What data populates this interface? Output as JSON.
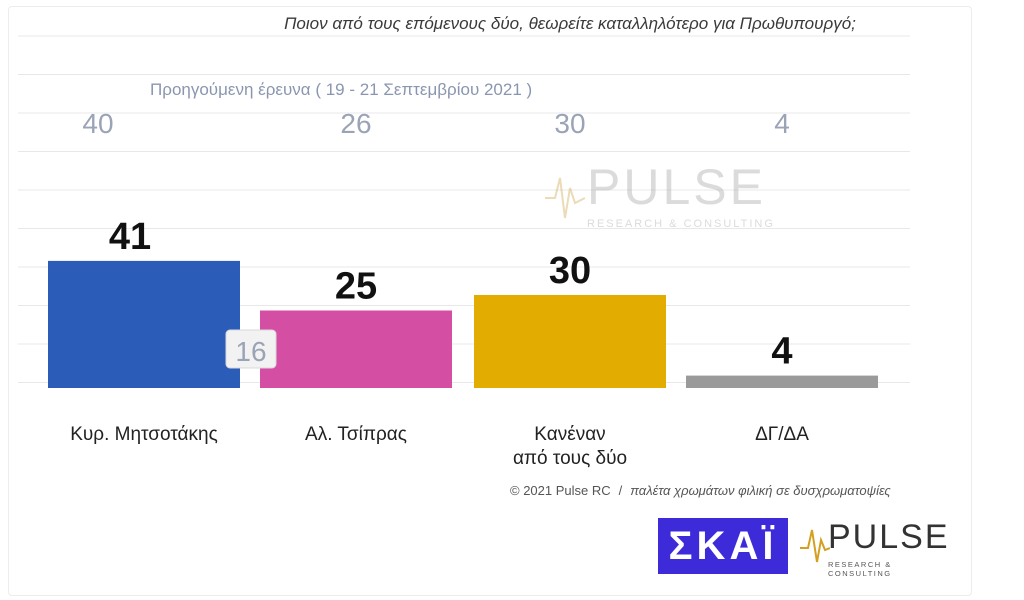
{
  "question": "Ποιον από τους επόμενους δύο, θεωρείτε καταλληλότερο για Πρωθυπουργό;",
  "previous_survey": "Προηγούμενη έρευνα  ( 19 - 21 Σεπτεμβρίου  2021 )",
  "watermark": {
    "name": "PULSE",
    "sub": "RESEARCH & CONSULTING"
  },
  "footer": {
    "copyright": "© 2021 Pulse RC",
    "separator": "/",
    "note": "παλέτα χρωμάτων φιλική σε δυσχρωματοψίες"
  },
  "logos": {
    "skai": "ΣΚΑΪ",
    "pulse": "PULSE",
    "pulse_sub": "RESEARCH & CONSULTING"
  },
  "badge": "16",
  "chart_data": {
    "type": "bar",
    "categories": [
      "Κυρ. Μητσοτάκης",
      "Αλ. Τσίπρας",
      "Κανέναν\nαπό τους δύο",
      "ΔΓ/ΔΑ"
    ],
    "values": [
      41,
      25,
      30,
      4
    ],
    "previous_values": [
      40,
      26,
      30,
      4
    ],
    "colors": [
      "#2b5cb8",
      "#d44ea3",
      "#e2ac00",
      "#9a9a9a"
    ],
    "ylim": [
      0,
      70
    ],
    "grid": true
  }
}
